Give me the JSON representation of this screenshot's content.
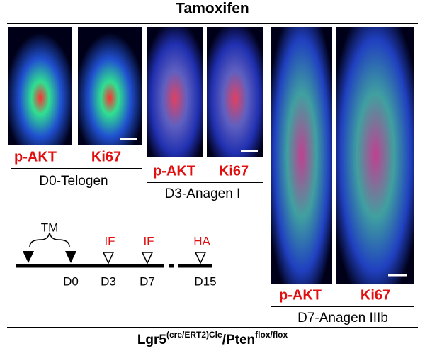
{
  "header": {
    "title": "Tamoxifen"
  },
  "panels": [
    {
      "labels": [
        "p-AKT",
        "Ki67"
      ],
      "caption": "D0-Telogen"
    },
    {
      "labels": [
        "p-AKT",
        "Ki67"
      ],
      "caption": "D3-Anagen I"
    },
    {
      "labels": [
        "p-AKT",
        "Ki67"
      ],
      "caption": "D7-Anagen IIIb"
    }
  ],
  "timeline": {
    "brace_label": "TM",
    "markers": [
      "IF",
      "IF",
      "HA"
    ],
    "days": [
      "D0",
      "D3",
      "D7",
      "D15"
    ]
  },
  "footer": {
    "parts": [
      "Lgr5",
      "(cre/ERT2)Cle",
      "/Pten",
      "flox/flox"
    ]
  }
}
